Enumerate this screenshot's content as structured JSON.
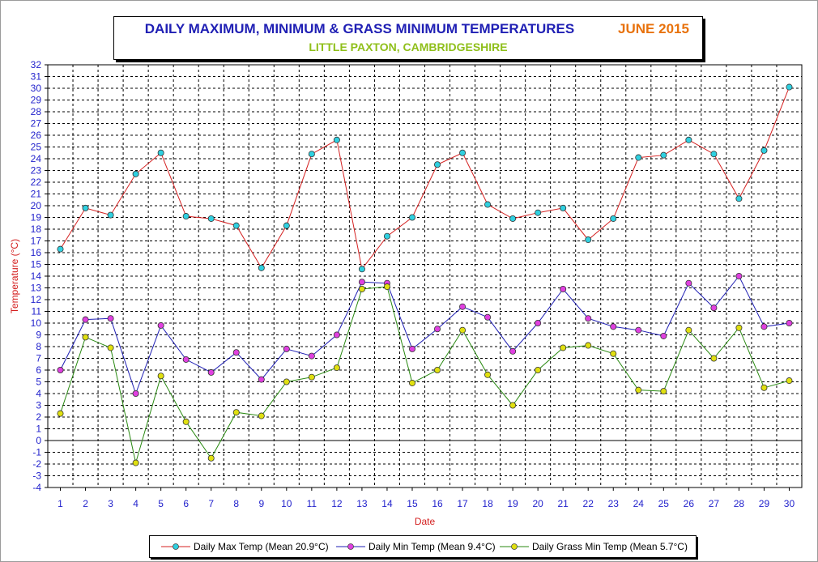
{
  "title": "DAILY MAXIMUM, MINIMUM & GRASS MINIMUM TEMPERATURES",
  "period": "JUNE 2015",
  "subtitle": "LITTLE PAXTON, CAMBRIDGESHIRE",
  "chart_data": {
    "type": "line",
    "xlabel": "Date",
    "ylabel": "Temperature (°C)",
    "x": [
      1,
      2,
      3,
      4,
      5,
      6,
      7,
      8,
      9,
      10,
      11,
      12,
      13,
      14,
      15,
      16,
      17,
      18,
      19,
      20,
      21,
      22,
      23,
      24,
      25,
      26,
      27,
      28,
      29,
      30
    ],
    "xlim": [
      1,
      30
    ],
    "ylim": [
      -4,
      32
    ],
    "yticks": [
      -4,
      -3,
      -2,
      -1,
      0,
      1,
      2,
      3,
      4,
      5,
      6,
      7,
      8,
      9,
      10,
      11,
      12,
      13,
      14,
      15,
      16,
      17,
      18,
      19,
      20,
      21,
      22,
      23,
      24,
      25,
      26,
      27,
      28,
      29,
      30,
      31,
      32
    ],
    "grid": true,
    "legend_position": "bottom",
    "series": [
      {
        "name": "Daily Max Temp (Mean 20.9°C)",
        "color": "#d42020",
        "marker_color": "#30d0e0",
        "values": [
          16.3,
          19.8,
          19.2,
          22.7,
          24.5,
          19.1,
          18.9,
          18.3,
          14.7,
          18.3,
          24.4,
          25.6,
          14.6,
          17.4,
          19.0,
          23.5,
          24.5,
          20.1,
          18.9,
          19.4,
          19.8,
          17.1,
          18.9,
          24.1,
          24.3,
          25.6,
          24.4,
          20.6,
          24.7,
          30.1
        ]
      },
      {
        "name": "Daily Min Temp (Mean 9.4°C)",
        "color": "#1f1fb4",
        "marker_color": "#e040e0",
        "values": [
          6.0,
          10.3,
          10.4,
          4.0,
          9.8,
          6.9,
          5.8,
          7.5,
          5.2,
          7.8,
          7.2,
          9.0,
          13.5,
          13.4,
          7.8,
          9.5,
          11.4,
          10.5,
          7.6,
          10.0,
          12.9,
          10.4,
          9.7,
          9.4,
          8.9,
          13.4,
          11.3,
          14.0,
          9.7,
          10.0
        ]
      },
      {
        "name": "Daily Grass Min Temp (Mean 5.7°C)",
        "color": "#2a8a12",
        "marker_color": "#e0e010",
        "values": [
          2.3,
          8.8,
          7.9,
          -1.9,
          5.5,
          1.6,
          -1.5,
          2.4,
          2.1,
          5.0,
          5.4,
          6.2,
          12.9,
          13.1,
          4.9,
          6.0,
          9.4,
          5.6,
          3.0,
          6.0,
          7.9,
          8.1,
          7.4,
          4.3,
          4.2,
          9.4,
          7.0,
          9.6,
          4.5,
          5.1
        ]
      }
    ]
  }
}
